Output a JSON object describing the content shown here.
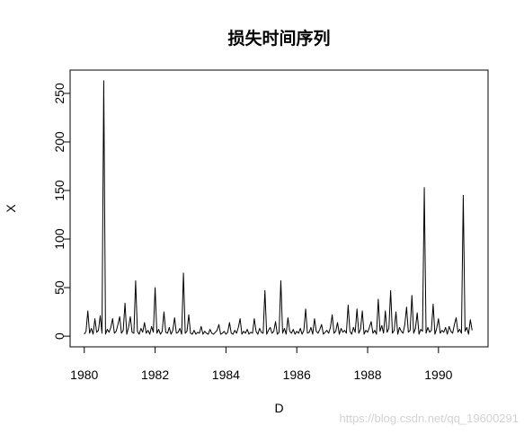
{
  "chart_data": {
    "type": "line",
    "title": "损失时间序列",
    "xlabel": "D",
    "ylabel": "X",
    "xlim": [
      1979.6,
      1991.4
    ],
    "ylim": [
      -11,
      274
    ],
    "xticks": [
      1980,
      1982,
      1984,
      1986,
      1988,
      1990
    ],
    "yticks": [
      0,
      50,
      100,
      150,
      200,
      250
    ],
    "grid": false,
    "line_color": "#000000",
    "x": [
      1980,
      1980.05,
      1980.1,
      1980.15,
      1980.2,
      1980.25,
      1980.3,
      1980.35,
      1980.4,
      1980.45,
      1980.5,
      1980.55,
      1980.6,
      1980.65,
      1980.7,
      1980.75,
      1980.8,
      1980.85,
      1980.9,
      1980.95,
      1981,
      1981.05,
      1981.1,
      1981.15,
      1981.2,
      1981.25,
      1981.3,
      1981.35,
      1981.4,
      1981.45,
      1981.5,
      1981.55,
      1981.6,
      1981.65,
      1981.7,
      1981.75,
      1981.8,
      1981.85,
      1981.9,
      1981.95,
      1982,
      1982.05,
      1982.1,
      1982.15,
      1982.2,
      1982.25,
      1982.3,
      1982.35,
      1982.4,
      1982.45,
      1982.5,
      1982.55,
      1982.6,
      1982.65,
      1982.7,
      1982.75,
      1982.8,
      1982.85,
      1982.9,
      1982.95,
      1983,
      1983.05,
      1983.1,
      1983.15,
      1983.2,
      1983.25,
      1983.3,
      1983.35,
      1983.4,
      1983.45,
      1983.5,
      1983.55,
      1983.6,
      1983.65,
      1983.7,
      1983.75,
      1983.8,
      1983.85,
      1983.9,
      1983.95,
      1984,
      1984.05,
      1984.1,
      1984.15,
      1984.2,
      1984.25,
      1984.3,
      1984.35,
      1984.4,
      1984.45,
      1984.5,
      1984.55,
      1984.6,
      1984.65,
      1984.7,
      1984.75,
      1984.8,
      1984.85,
      1984.9,
      1984.95,
      1985,
      1985.05,
      1985.1,
      1985.15,
      1985.2,
      1985.25,
      1985.3,
      1985.35,
      1985.4,
      1985.45,
      1985.5,
      1985.55,
      1985.6,
      1985.65,
      1985.7,
      1985.75,
      1985.8,
      1985.85,
      1985.9,
      1985.95,
      1986,
      1986.05,
      1986.1,
      1986.15,
      1986.2,
      1986.25,
      1986.3,
      1986.35,
      1986.4,
      1986.45,
      1986.5,
      1986.55,
      1986.6,
      1986.65,
      1986.7,
      1986.75,
      1986.8,
      1986.85,
      1986.9,
      1986.95,
      1987,
      1987.05,
      1987.1,
      1987.15,
      1987.2,
      1987.25,
      1987.3,
      1987.35,
      1987.4,
      1987.45,
      1987.5,
      1987.55,
      1987.6,
      1987.65,
      1987.7,
      1987.75,
      1987.8,
      1987.85,
      1987.9,
      1987.95,
      1988,
      1988.05,
      1988.1,
      1988.15,
      1988.2,
      1988.25,
      1988.3,
      1988.35,
      1988.4,
      1988.45,
      1988.5,
      1988.55,
      1988.6,
      1988.65,
      1988.7,
      1988.75,
      1988.8,
      1988.85,
      1988.9,
      1988.95,
      1989,
      1989.05,
      1989.1,
      1989.15,
      1989.2,
      1989.25,
      1989.3,
      1989.35,
      1989.4,
      1989.45,
      1989.5,
      1989.55,
      1989.6,
      1989.65,
      1989.7,
      1989.75,
      1989.8,
      1989.85,
      1989.9,
      1989.95,
      1990,
      1990.05,
      1990.1,
      1990.15,
      1990.2,
      1990.25,
      1990.3,
      1990.35,
      1990.4,
      1990.45,
      1990.5,
      1990.55,
      1990.6,
      1990.65,
      1990.7,
      1990.75,
      1990.8,
      1990.85,
      1990.9,
      1990.95
    ],
    "y": [
      2,
      5,
      26,
      3,
      8,
      2,
      18,
      4,
      6,
      21,
      3,
      263,
      2,
      7,
      4,
      9,
      18,
      3,
      5,
      12,
      20,
      3,
      6,
      34,
      2,
      9,
      20,
      4,
      3,
      57,
      5,
      2,
      8,
      4,
      14,
      3,
      6,
      2,
      10,
      4,
      50,
      3,
      7,
      2,
      5,
      25,
      4,
      3,
      9,
      2,
      6,
      19,
      3,
      4,
      8,
      2,
      65,
      3,
      5,
      22,
      3,
      2,
      6,
      2,
      4,
      3,
      10,
      2,
      5,
      3,
      2,
      7,
      3,
      2,
      4,
      6,
      12,
      2,
      3,
      5,
      2,
      4,
      14,
      3,
      2,
      6,
      3,
      9,
      18,
      2,
      5,
      3,
      7,
      2,
      4,
      3,
      18,
      5,
      2,
      8,
      4,
      3,
      47,
      2,
      6,
      9,
      3,
      5,
      15,
      2,
      4,
      57,
      3,
      8,
      2,
      19,
      5,
      3,
      7,
      2,
      5,
      3,
      8,
      2,
      6,
      28,
      3,
      4,
      9,
      2,
      18,
      5,
      3,
      7,
      12,
      2,
      4,
      6,
      3,
      9,
      22,
      3,
      5,
      14,
      2,
      8,
      4,
      6,
      3,
      32,
      5,
      2,
      9,
      4,
      28,
      3,
      7,
      26,
      2,
      6,
      4,
      9,
      15,
      3,
      6,
      2,
      38,
      5,
      11,
      3,
      26,
      4,
      8,
      47,
      3,
      6,
      25,
      2,
      9,
      5,
      3,
      12,
      30,
      4,
      6,
      42,
      3,
      8,
      24,
      2,
      7,
      5,
      153,
      3,
      9,
      4,
      6,
      33,
      2,
      8,
      18,
      3,
      6,
      4,
      9,
      2,
      10,
      5,
      3,
      12,
      19,
      4,
      7,
      3,
      145,
      5,
      9,
      2,
      17,
      6
    ]
  },
  "watermark": "https://blog.csdn.net/qq_19600291"
}
